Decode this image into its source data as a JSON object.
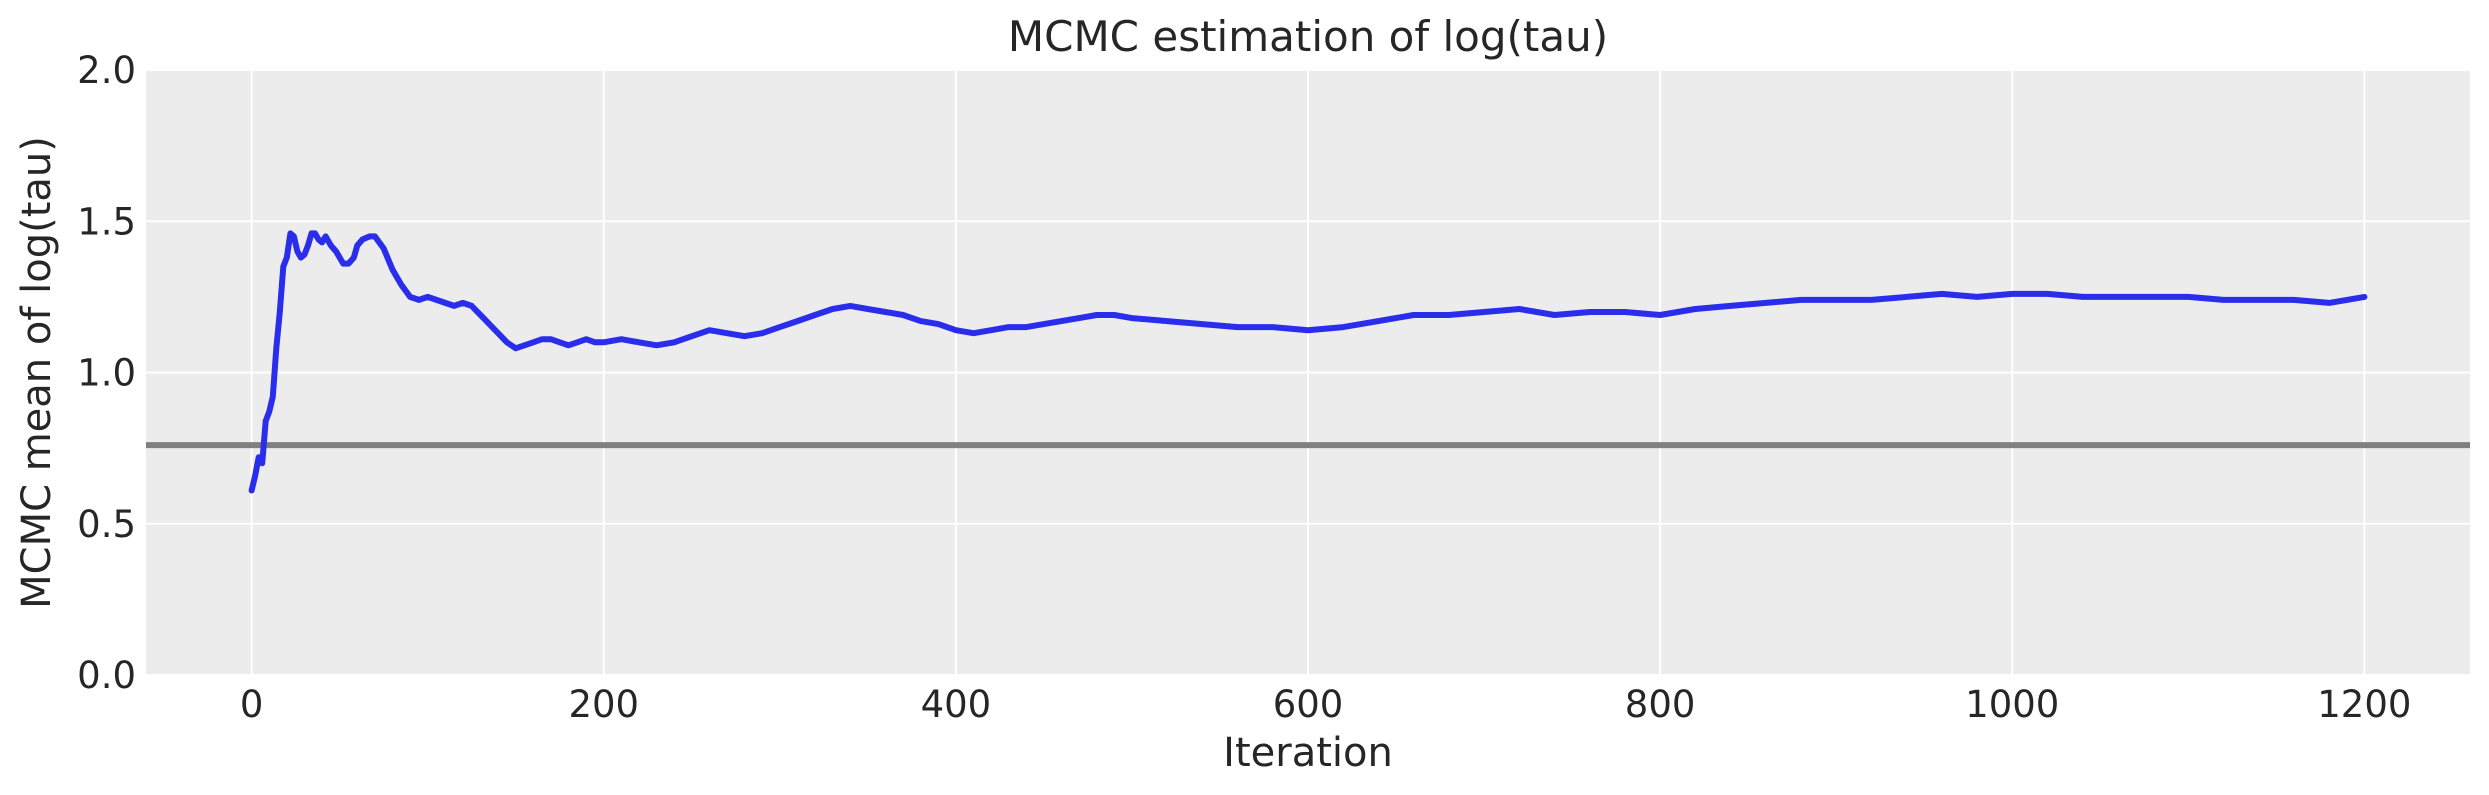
{
  "chart_data": {
    "type": "line",
    "title": "MCMC estimation of log(tau)",
    "xlabel": "Iteration",
    "ylabel": "MCMC mean of log(tau)",
    "xlim": [
      -60,
      1260
    ],
    "ylim": [
      0.0,
      2.0
    ],
    "xticks": [
      0,
      200,
      400,
      600,
      800,
      1000,
      1200
    ],
    "xtick_labels": [
      "0",
      "200",
      "400",
      "600",
      "800",
      "1000",
      "1200"
    ],
    "yticks": [
      0.0,
      0.5,
      1.0,
      1.5,
      2.0
    ],
    "ytick_labels": [
      "0.0",
      "0.5",
      "1.0",
      "1.5",
      "2.0"
    ],
    "grid": true,
    "reference_line": {
      "y": 0.76,
      "color": "#808080"
    },
    "series": [
      {
        "color": "#2a2eec",
        "x": [
          0,
          2,
          4,
          6,
          8,
          10,
          12,
          14,
          16,
          18,
          20,
          22,
          24,
          26,
          28,
          30,
          32,
          34,
          36,
          38,
          40,
          42,
          45,
          48,
          50,
          52,
          55,
          58,
          60,
          63,
          67,
          70,
          75,
          80,
          85,
          90,
          95,
          100,
          105,
          110,
          115,
          120,
          125,
          130,
          135,
          140,
          145,
          150,
          155,
          160,
          165,
          170,
          175,
          180,
          185,
          190,
          195,
          200,
          210,
          220,
          230,
          240,
          250,
          260,
          270,
          280,
          290,
          300,
          310,
          320,
          330,
          340,
          350,
          360,
          370,
          380,
          390,
          400,
          410,
          420,
          430,
          440,
          450,
          460,
          470,
          480,
          490,
          500,
          520,
          540,
          560,
          580,
          600,
          620,
          640,
          660,
          680,
          700,
          720,
          740,
          760,
          780,
          800,
          820,
          840,
          860,
          880,
          900,
          920,
          940,
          960,
          980,
          1000,
          1020,
          1040,
          1060,
          1080,
          1100,
          1120,
          1140,
          1160,
          1180,
          1200
        ],
        "y": [
          0.61,
          0.66,
          0.72,
          0.7,
          0.84,
          0.87,
          0.92,
          1.08,
          1.2,
          1.35,
          1.38,
          1.46,
          1.45,
          1.4,
          1.38,
          1.39,
          1.42,
          1.46,
          1.46,
          1.44,
          1.43,
          1.45,
          1.42,
          1.4,
          1.38,
          1.36,
          1.36,
          1.38,
          1.42,
          1.44,
          1.45,
          1.45,
          1.41,
          1.34,
          1.29,
          1.25,
          1.24,
          1.25,
          1.24,
          1.23,
          1.22,
          1.23,
          1.22,
          1.19,
          1.16,
          1.13,
          1.1,
          1.08,
          1.09,
          1.1,
          1.11,
          1.11,
          1.1,
          1.09,
          1.1,
          1.11,
          1.1,
          1.1,
          1.11,
          1.1,
          1.09,
          1.1,
          1.12,
          1.14,
          1.13,
          1.12,
          1.13,
          1.15,
          1.17,
          1.19,
          1.21,
          1.22,
          1.21,
          1.2,
          1.19,
          1.17,
          1.16,
          1.14,
          1.13,
          1.14,
          1.15,
          1.15,
          1.16,
          1.17,
          1.18,
          1.19,
          1.19,
          1.18,
          1.17,
          1.16,
          1.15,
          1.15,
          1.14,
          1.15,
          1.17,
          1.19,
          1.19,
          1.2,
          1.21,
          1.19,
          1.2,
          1.2,
          1.19,
          1.21,
          1.22,
          1.23,
          1.24,
          1.24,
          1.24,
          1.25,
          1.26,
          1.25,
          1.26,
          1.26,
          1.25,
          1.25,
          1.25,
          1.25,
          1.24,
          1.24,
          1.24,
          1.23,
          1.25
        ]
      }
    ]
  }
}
